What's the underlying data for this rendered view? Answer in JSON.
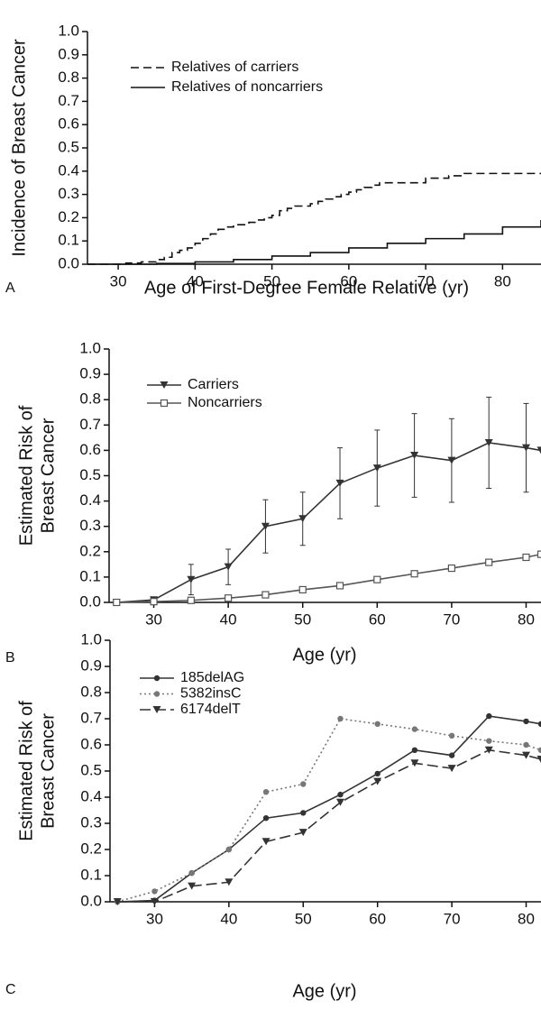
{
  "chart_data": [
    {
      "type": "step",
      "panel": "A",
      "ylabel": [
        "Incidence of Breast Cancer"
      ],
      "xlabel": "Age of First-Degree Female Relative (yr)",
      "xlim": [
        26,
        85
      ],
      "xticks": [
        30,
        40,
        50,
        60,
        70,
        80
      ],
      "ylim": [
        0,
        1
      ],
      "yticks": [
        {
          "value": 0,
          "label": "0.0"
        },
        0.1,
        0.2,
        0.3,
        0.4,
        0.5,
        0.6,
        0.7,
        0.8,
        0.9,
        {
          "value": 1,
          "label": "1.0"
        }
      ],
      "series": [
        {
          "name": "Relatives of carriers",
          "color": "#111111",
          "dash": "9,5",
          "x": [
            26,
            31,
            33,
            35,
            36,
            37,
            38,
            39,
            40,
            41,
            42,
            43,
            44,
            45,
            47,
            48,
            49,
            50,
            51,
            52,
            53,
            55,
            56,
            57,
            58,
            59,
            60,
            61,
            62,
            63,
            64,
            66,
            70,
            73,
            75,
            79,
            85
          ],
          "values": [
            0,
            0.005,
            0.01,
            0.02,
            0.03,
            0.05,
            0.06,
            0.07,
            0.09,
            0.11,
            0.13,
            0.15,
            0.16,
            0.17,
            0.18,
            0.19,
            0.2,
            0.21,
            0.23,
            0.24,
            0.25,
            0.26,
            0.27,
            0.28,
            0.29,
            0.3,
            0.31,
            0.32,
            0.33,
            0.34,
            0.35,
            0.35,
            0.37,
            0.38,
            0.39,
            0.39,
            0.39
          ]
        },
        {
          "name": "Relatives of noncarriers",
          "color": "#111111",
          "dash": "none",
          "x": [
            26,
            30,
            35,
            40,
            45,
            50,
            55,
            60,
            65,
            70,
            75,
            80,
            85
          ],
          "values": [
            0,
            0,
            0.003,
            0.01,
            0.02,
            0.035,
            0.05,
            0.07,
            0.09,
            0.11,
            0.13,
            0.16,
            0.19
          ]
        }
      ]
    },
    {
      "type": "errorline",
      "panel": "B",
      "ylabel": [
        "Estimated Risk of",
        "Breast Cancer"
      ],
      "xlabel": "Age (yr)",
      "xlim": [
        24,
        82
      ],
      "xticks": [
        30,
        40,
        50,
        60,
        70,
        80
      ],
      "ylim": [
        0,
        1
      ],
      "yticks": [
        {
          "value": 0,
          "label": "0.0"
        },
        0.1,
        0.2,
        0.3,
        0.4,
        0.5,
        0.6,
        0.7,
        0.8,
        0.9,
        {
          "value": 1,
          "label": "1.0"
        }
      ],
      "x": [
        25,
        30,
        35,
        40,
        45,
        50,
        55,
        60,
        65,
        70,
        75,
        80,
        82
      ],
      "series": [
        {
          "name": "Carriers",
          "color": "#333333",
          "marker": "triangle",
          "dash": "none",
          "values": [
            0,
            0.01,
            0.09,
            0.14,
            0.3,
            0.33,
            0.47,
            0.53,
            0.58,
            0.56,
            0.63,
            0.61,
            0.6
          ],
          "errors": [
            null,
            0.01,
            0.06,
            0.07,
            0.105,
            0.105,
            0.14,
            0.15,
            0.165,
            0.165,
            0.18,
            0.175,
            null
          ]
        },
        {
          "name": "Noncarriers",
          "color": "#555555",
          "marker": "square",
          "dash": "none",
          "values": [
            0,
            0.003,
            0.008,
            0.017,
            0.03,
            0.05,
            0.066,
            0.09,
            0.113,
            0.135,
            0.158,
            0.178,
            0.19
          ],
          "errors": [
            null,
            0.003,
            0.004,
            0.004,
            0.005,
            0.006,
            0.007,
            0.008,
            0.009,
            0.01,
            0.011,
            0.012,
            null
          ]
        }
      ]
    },
    {
      "type": "line",
      "panel": "C",
      "ylabel": [
        "Estimated Risk of",
        "Breast Cancer"
      ],
      "xlabel": "Age (yr)",
      "xlim": [
        24,
        82
      ],
      "xticks": [
        30,
        40,
        50,
        60,
        70,
        80
      ],
      "ylim": [
        0,
        1
      ],
      "yticks": [
        {
          "value": 0,
          "label": "0.0"
        },
        0.1,
        0.2,
        0.3,
        0.4,
        0.5,
        0.6,
        0.7,
        0.8,
        0.9,
        {
          "value": 1,
          "label": "1.0"
        }
      ],
      "x": [
        25,
        30,
        35,
        40,
        45,
        50,
        55,
        60,
        65,
        70,
        75,
        80,
        82
      ],
      "series": [
        {
          "name": "185delAG",
          "color": "#333333",
          "marker": "circle",
          "dash": "none",
          "values": [
            0,
            0.005,
            0.11,
            0.2,
            0.32,
            0.34,
            0.41,
            0.49,
            0.58,
            0.56,
            0.71,
            0.69,
            0.68
          ]
        },
        {
          "name": "5382insC",
          "color": "#777777",
          "marker": "circle",
          "dash": "2,3",
          "values": [
            0,
            0.04,
            0.11,
            0.2,
            0.42,
            0.45,
            0.7,
            0.68,
            0.66,
            0.635,
            0.615,
            0.6,
            0.58
          ]
        },
        {
          "name": "6174delT",
          "color": "#333333",
          "marker": "triangle",
          "dash": "12,5",
          "values": [
            0,
            0,
            0.06,
            0.075,
            0.23,
            0.265,
            0.38,
            0.46,
            0.53,
            0.51,
            0.58,
            0.56,
            0.545
          ]
        }
      ]
    }
  ]
}
